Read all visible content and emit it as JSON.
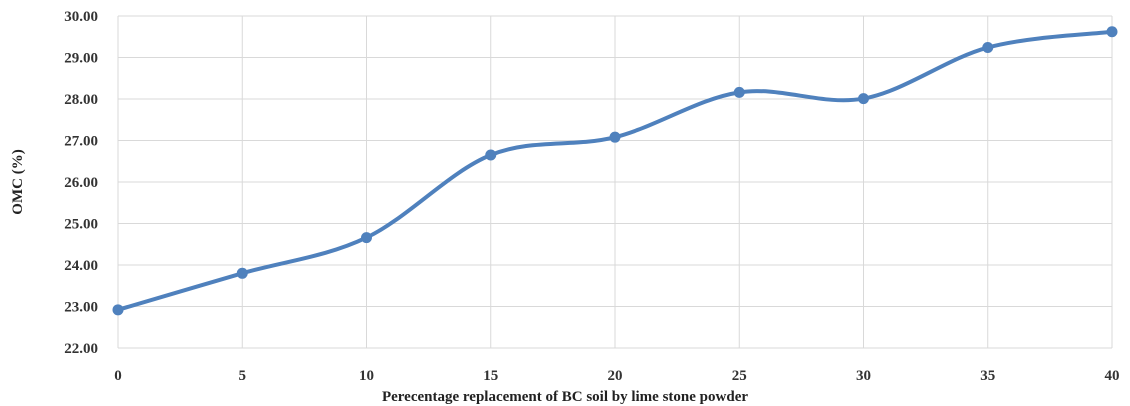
{
  "chart_data": {
    "type": "line",
    "title": "",
    "xlabel": "Perecentage replacement  of BC soil by lime stone powder",
    "ylabel": "OMC (%)",
    "x": [
      0,
      5,
      10,
      15,
      20,
      25,
      30,
      35,
      40
    ],
    "x_tick_labels": [
      "0",
      "5",
      "10",
      "15",
      "20",
      "25",
      "30",
      "35",
      "40"
    ],
    "series": [
      {
        "values": [
          22.92,
          23.8,
          24.66,
          26.65,
          27.08,
          28.16,
          28.01,
          29.24,
          29.62
        ]
      }
    ],
    "y_tick_labels": [
      "22.00",
      "23.00",
      "24.00",
      "25.00",
      "26.00",
      "27.00",
      "28.00",
      "29.00",
      "30.00"
    ],
    "xlim": [
      0,
      40
    ],
    "ylim": [
      22,
      30
    ],
    "grid": true,
    "smooth": true,
    "line_color": "#4F81BD",
    "grid_color": "#D9D9D9"
  }
}
